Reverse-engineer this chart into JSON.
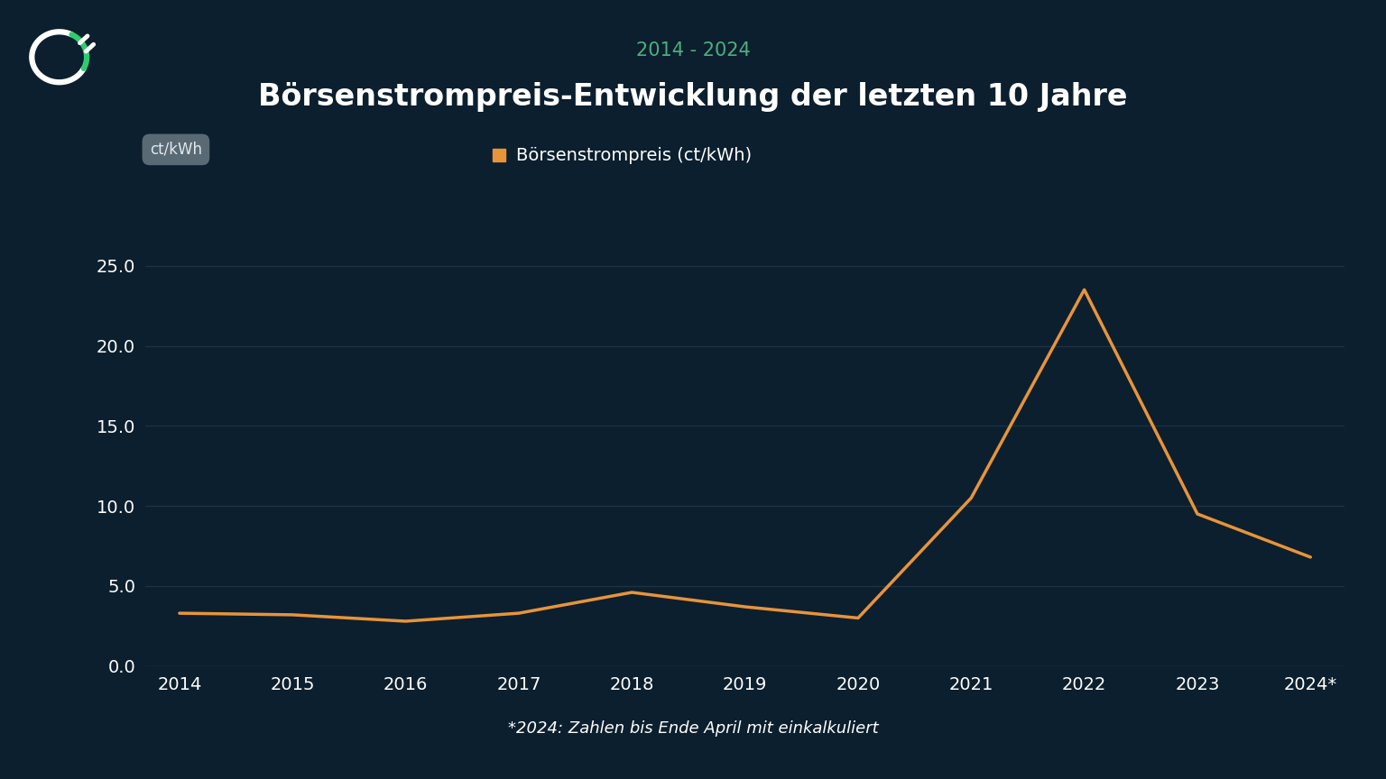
{
  "title": "Börsenstrompreis-Entwicklung der letzten 10 Jahre",
  "subtitle": "2014 - 2024",
  "footnote": "*2024: Zahlen bis Ende April mit einkalkuliert",
  "ylabel_box": "ct/kWh",
  "legend_label": "Börsenstrompreis (ct/kWh)",
  "years": [
    "2014",
    "2015",
    "2016",
    "2017",
    "2018",
    "2019",
    "2020",
    "2021",
    "2022",
    "2023",
    "2024*"
  ],
  "values": [
    3.3,
    3.2,
    2.8,
    3.3,
    4.6,
    3.7,
    3.0,
    10.5,
    23.5,
    9.5,
    6.8
  ],
  "line_color": "#E8943A",
  "background_color": "#0c1f2e",
  "grid_color": "#1a3345",
  "text_color": "#ffffff",
  "subtitle_color": "#4caf7d",
  "ylabel_box_bg": "#5a6a74",
  "ylabel_box_text": "#e0e8ec",
  "ylim": [
    0,
    27
  ],
  "yticks": [
    0.0,
    5.0,
    10.0,
    15.0,
    20.0,
    25.0
  ],
  "title_fontsize": 24,
  "subtitle_fontsize": 15,
  "tick_fontsize": 14,
  "legend_fontsize": 14,
  "footnote_fontsize": 13
}
